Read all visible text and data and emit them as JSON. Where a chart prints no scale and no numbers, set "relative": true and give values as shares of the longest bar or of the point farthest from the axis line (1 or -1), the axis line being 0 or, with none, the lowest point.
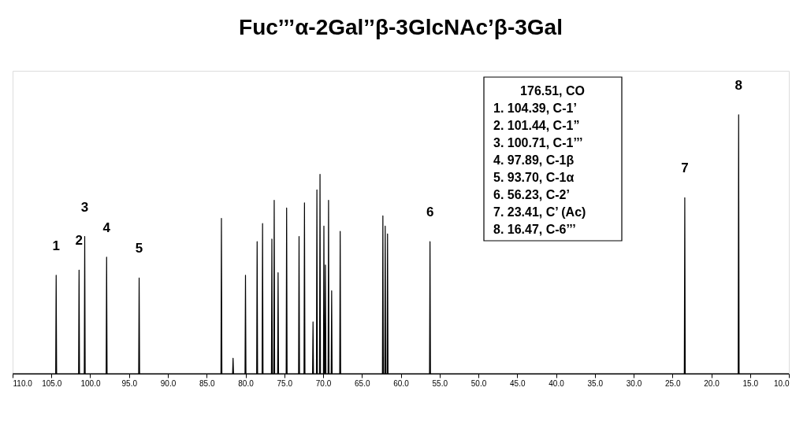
{
  "chart_data": {
    "type": "line",
    "relative": true,
    "title": "Fuc’’’α-2Gal’’β-3GlcNAc’β-3Gal",
    "xlim": [
      110,
      10
    ],
    "xticks": [
      {
        "value": 110,
        "label": "110.0"
      },
      {
        "value": 105,
        "label": "105.0"
      },
      {
        "value": 100,
        "label": "100.0"
      },
      {
        "value": 95,
        "label": "95.0"
      },
      {
        "value": 90,
        "label": "90.0"
      },
      {
        "value": 85,
        "label": "85.0"
      },
      {
        "value": 80,
        "label": "80.0"
      },
      {
        "value": 75,
        "label": "75.0"
      },
      {
        "value": 70,
        "label": "70.0"
      },
      {
        "value": 65,
        "label": "65.0"
      },
      {
        "value": 60,
        "label": "60.0"
      },
      {
        "value": 55,
        "label": "55.0"
      },
      {
        "value": 50,
        "label": "50.0"
      },
      {
        "value": 45,
        "label": "45.0"
      },
      {
        "value": 40,
        "label": "40.0"
      },
      {
        "value": 35,
        "label": "35.0"
      },
      {
        "value": 30,
        "label": "30.0"
      },
      {
        "value": 25,
        "label": "25.0"
      },
      {
        "value": 20,
        "label": "20.0"
      },
      {
        "value": 15,
        "label": "15.0"
      },
      {
        "value": 10,
        "label": "10.0"
      }
    ],
    "grid": false,
    "marker": "none",
    "line_style": "solid",
    "series": [
      {
        "color": "#000000",
        "x": [
          110,
          104.45,
          104.39,
          104.33,
          101.5,
          101.44,
          101.38,
          100.77,
          100.71,
          100.65,
          97.95,
          97.89,
          97.83,
          93.76,
          93.7,
          93.64,
          83.16,
          83.1,
          83.04,
          81.66,
          81.6,
          81.54,
          80.06,
          80.0,
          79.94,
          78.56,
          78.5,
          78.44,
          77.86,
          77.8,
          77.74,
          76.66,
          76.6,
          76.54,
          76.36,
          76.3,
          76.24,
          75.86,
          75.8,
          75.74,
          74.76,
          74.7,
          74.64,
          73.16,
          73.1,
          73.04,
          72.46,
          72.4,
          72.34,
          71.36,
          71.3,
          71.24,
          70.86,
          70.8,
          70.74,
          70.46,
          70.4,
          70.34,
          69.96,
          69.9,
          69.84,
          69.76,
          69.7,
          69.64,
          69.36,
          69.3,
          69.24,
          68.96,
          68.9,
          68.84,
          67.86,
          67.8,
          67.74,
          62.36,
          62.3,
          62.24,
          62.06,
          62.0,
          61.94,
          61.76,
          61.7,
          61.64,
          56.29,
          56.23,
          56.17,
          23.47,
          23.41,
          23.35,
          16.53,
          16.47,
          16.41,
          10
        ],
        "values": [
          0,
          0,
          0.38,
          0,
          0,
          0.4,
          0,
          0,
          0.53,
          0,
          0,
          0.45,
          0,
          0,
          0.37,
          0,
          0,
          0.6,
          0,
          0,
          0.06,
          0,
          0,
          0.38,
          0,
          0,
          0.51,
          0,
          0,
          0.58,
          0,
          0,
          0.52,
          0,
          0,
          0.67,
          0,
          0,
          0.39,
          0,
          0,
          0.64,
          0,
          0,
          0.53,
          0,
          0,
          0.66,
          0,
          0,
          0.2,
          0,
          0,
          0.71,
          0,
          0,
          0.77,
          0,
          0,
          0.57,
          0,
          0,
          0.42,
          0,
          0,
          0.67,
          0,
          0,
          0.32,
          0,
          0,
          0.55,
          0,
          0,
          0.61,
          0,
          0,
          0.57,
          0,
          0,
          0.54,
          0,
          0,
          0.51,
          0,
          0,
          0.68,
          0,
          0,
          1,
          0,
          0
        ]
      }
    ],
    "annotations": [
      {
        "text": "1",
        "x": 104.39,
        "y": 0.38
      },
      {
        "text": "2",
        "x": 101.44,
        "y": 0.4
      },
      {
        "text": "3",
        "x": 100.71,
        "y": 0.53
      },
      {
        "text": "4",
        "x": 97.89,
        "y": 0.45
      },
      {
        "text": "5",
        "x": 93.7,
        "y": 0.37
      },
      {
        "text": "6",
        "x": 56.23,
        "y": 0.51
      },
      {
        "text": "7",
        "x": 23.41,
        "y": 0.68
      },
      {
        "text": "8",
        "x": 16.47,
        "y": 1
      },
      "176.51, CO",
      "1. 104.39, C-1’",
      "2. 101.44, C-1”",
      "3. 100.71, C-1’’’",
      "4. 97.89, C-1β",
      "5. 93.70, C-1α",
      "6. 56.23, C-2’",
      "7. 23.41, C’ (Ac)",
      "8. 16.47, C-6’’’"
    ]
  }
}
